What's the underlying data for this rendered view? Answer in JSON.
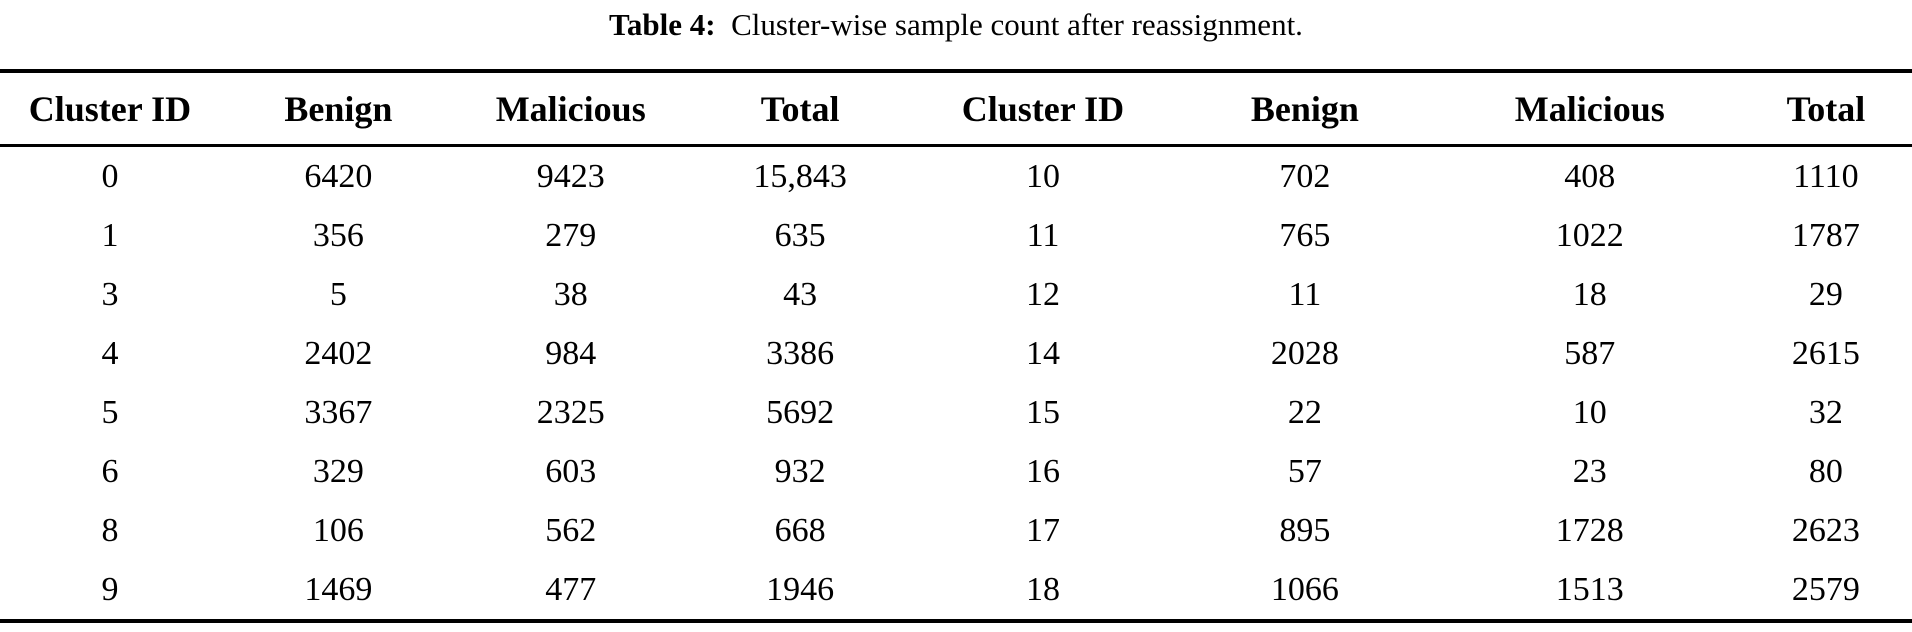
{
  "caption": {
    "label": "Table 4:",
    "text": "Cluster-wise sample count after reassignment."
  },
  "table": {
    "headers": [
      "Cluster ID",
      "Benign",
      "Malicious",
      "Total",
      "Cluster ID",
      "Benign",
      "Malicious",
      "Total"
    ],
    "rows": [
      [
        "0",
        "6420",
        "9423",
        "15,843",
        "10",
        "702",
        "408",
        "1110"
      ],
      [
        "1",
        "356",
        "279",
        "635",
        "11",
        "765",
        "1022",
        "1787"
      ],
      [
        "3",
        "5",
        "38",
        "43",
        "12",
        "11",
        "18",
        "29"
      ],
      [
        "4",
        "2402",
        "984",
        "3386",
        "14",
        "2028",
        "587",
        "2615"
      ],
      [
        "5",
        "3367",
        "2325",
        "5692",
        "15",
        "22",
        "10",
        "32"
      ],
      [
        "6",
        "329",
        "603",
        "932",
        "16",
        "57",
        "23",
        "80"
      ],
      [
        "8",
        "106",
        "562",
        "668",
        "17",
        "895",
        "1728",
        "2623"
      ],
      [
        "9",
        "1469",
        "477",
        "1946",
        "18",
        "1066",
        "1513",
        "2579"
      ]
    ]
  }
}
